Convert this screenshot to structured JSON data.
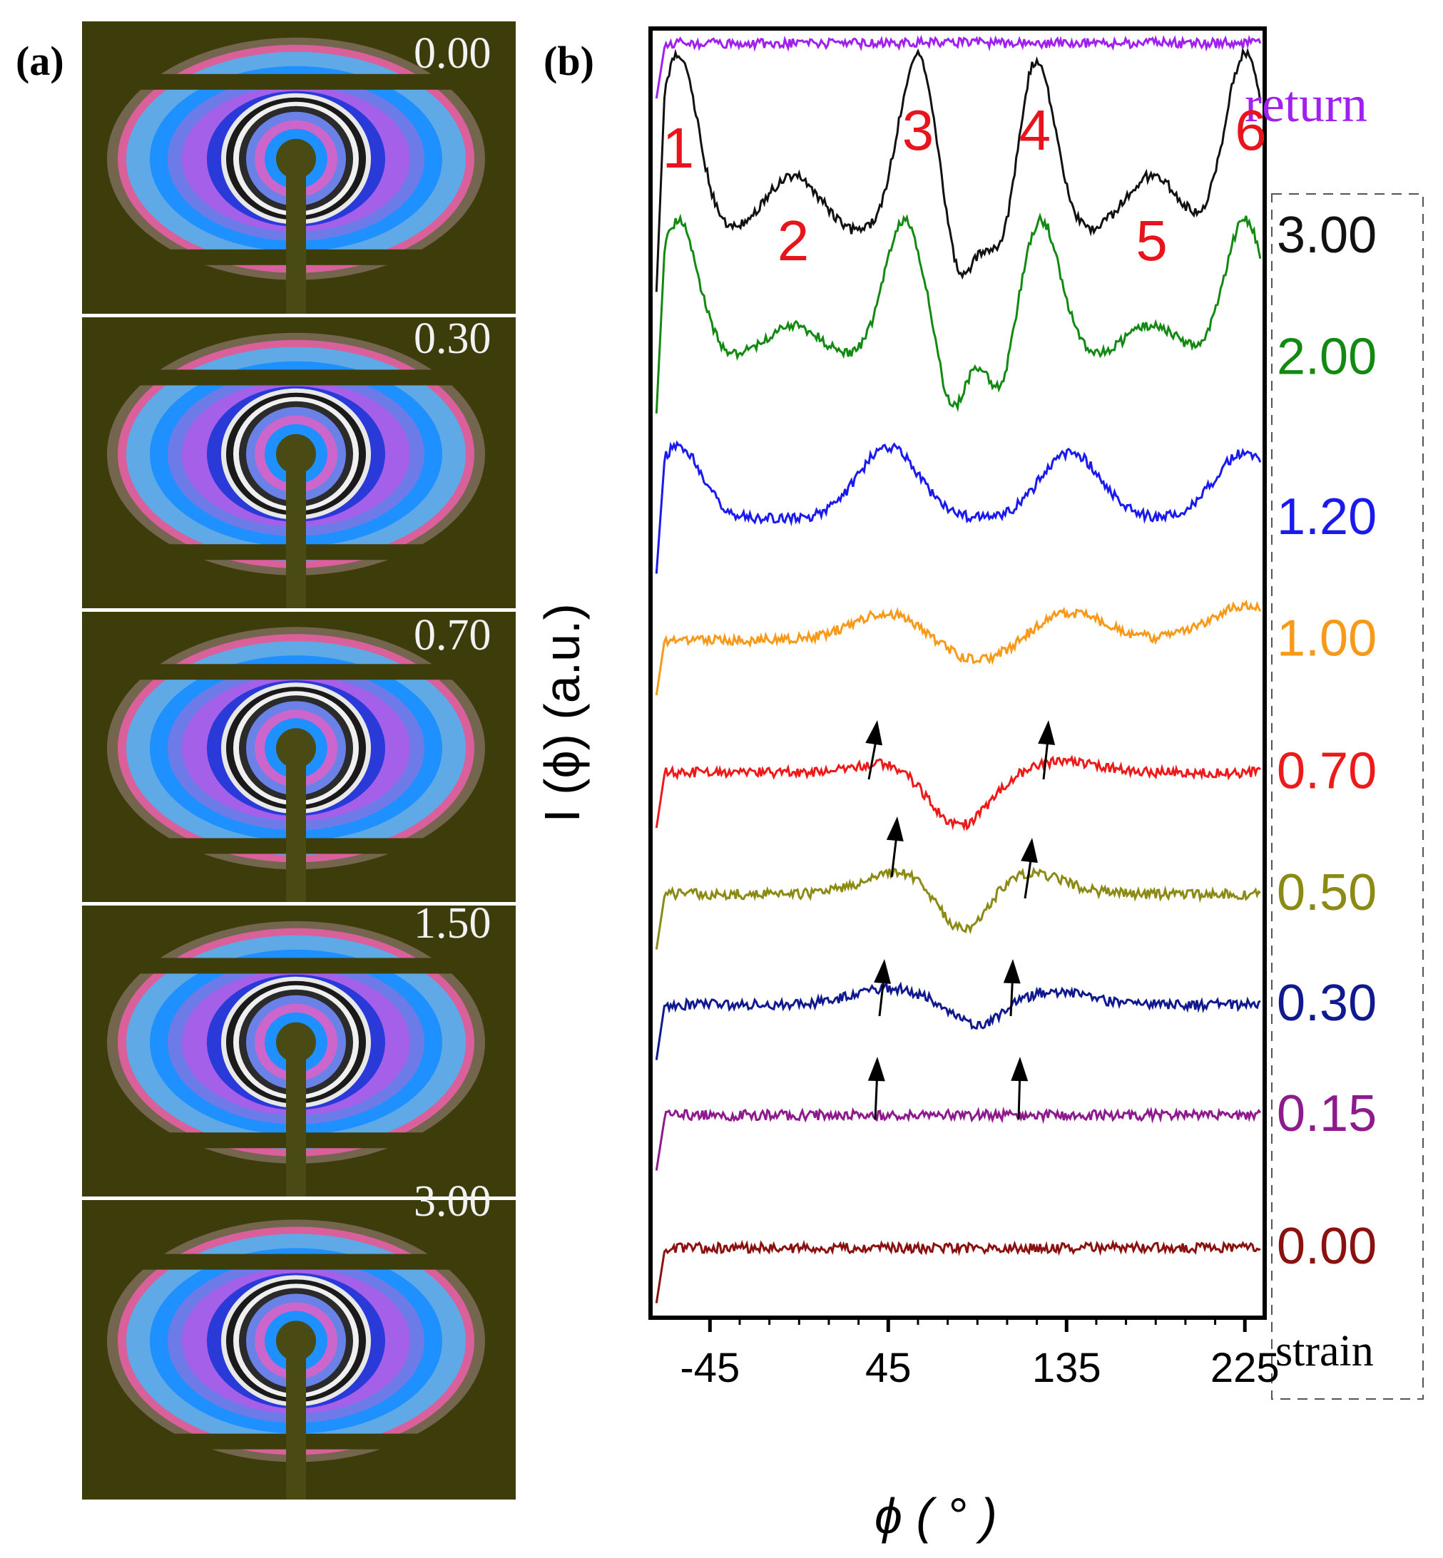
{
  "panel_a": {
    "label": "(a)",
    "strains": [
      "0.00",
      "0.30",
      "0.70",
      "1.50",
      "3.00"
    ]
  },
  "panel_b": {
    "label": "(b)"
  },
  "colors": {
    "pattern_bg": "#3d3d0c",
    "peak_label": "#e8141b"
  },
  "chart_data": {
    "type": "line",
    "title": "",
    "xlabel": "ϕ ( ° )",
    "ylabel": "I (ϕ) (a.u.)",
    "xlim": [
      -75,
      235
    ],
    "xticks": [
      -45,
      45,
      135,
      225
    ],
    "ylim": [
      0,
      10
    ],
    "legend_title": "strain",
    "peak_labels": [
      {
        "label": "1",
        "x": -61
      },
      {
        "label": "2",
        "x": -3
      },
      {
        "label": "3",
        "x": 60
      },
      {
        "label": "4",
        "x": 119
      },
      {
        "label": "5",
        "x": 178
      },
      {
        "label": "6",
        "x": 228
      }
    ],
    "series": [
      {
        "name": "0.00",
        "color": "#8b1010",
        "offset": 0.4,
        "peaks": [],
        "dips": []
      },
      {
        "name": "0.15",
        "color": "#8e1b8e",
        "offset": 1.6,
        "peaks": [],
        "dips": []
      },
      {
        "name": "0.30",
        "color": "#101a8e",
        "offset": 2.6,
        "peaks": [
          [
            45,
            0.15,
            18
          ],
          [
            128,
            0.12,
            18
          ]
        ],
        "dips": [
          [
            90,
            0.2,
            12
          ]
        ]
      },
      {
        "name": "0.50",
        "color": "#8a8a14",
        "offset": 3.6,
        "peaks": [
          [
            51,
            0.2,
            18
          ],
          [
            115,
            0.2,
            18
          ]
        ],
        "dips": [
          [
            83,
            0.4,
            12
          ]
        ]
      },
      {
        "name": "0.70",
        "color": "#ee1a1a",
        "offset": 4.7,
        "peaks": [
          [
            47,
            0.1,
            18
          ],
          [
            134,
            0.1,
            18
          ]
        ],
        "dips": [
          [
            80,
            0.5,
            15
          ]
        ]
      },
      {
        "name": "1.00",
        "color": "#f79a1a",
        "offset": 5.9,
        "peaks": [
          [
            45,
            0.25,
            18
          ],
          [
            136,
            0.25,
            18
          ],
          [
            225,
            0.3,
            18
          ]
        ],
        "dips": [
          [
            90,
            0.2,
            18
          ]
        ]
      },
      {
        "name": "1.20",
        "color": "#1a1aee",
        "offset": 7.0,
        "peaks": [
          [
            -61,
            0.65,
            12
          ],
          [
            45,
            0.65,
            15
          ],
          [
            137,
            0.6,
            15
          ],
          [
            225,
            0.6,
            15
          ]
        ],
        "dips": []
      },
      {
        "name": "2.00",
        "color": "#128a12",
        "offset": 8.45,
        "peaks": [
          [
            -61,
            1.25,
            10
          ],
          [
            -3,
            0.3,
            13
          ],
          [
            53,
            1.25,
            10
          ],
          [
            122,
            1.25,
            10
          ],
          [
            178,
            0.3,
            13
          ],
          [
            225,
            1.25,
            10
          ]
        ],
        "dips": [
          [
            77,
            0.5,
            6
          ],
          [
            102,
            0.4,
            6
          ]
        ]
      },
      {
        "name": "3.00",
        "color": "#111111",
        "offset": 9.55,
        "peaks": [
          [
            -61,
            1.65,
            10
          ],
          [
            -3,
            0.55,
            14
          ],
          [
            60,
            1.65,
            10
          ],
          [
            119,
            1.65,
            10
          ],
          [
            178,
            0.55,
            14
          ],
          [
            225,
            1.65,
            10
          ]
        ],
        "dips": [
          [
            80,
            0.5,
            7
          ],
          [
            105,
            0.45,
            7
          ]
        ]
      },
      {
        "name": "return",
        "color": "#a020f0",
        "offset": 11.3,
        "peaks": [],
        "dips": []
      }
    ]
  }
}
